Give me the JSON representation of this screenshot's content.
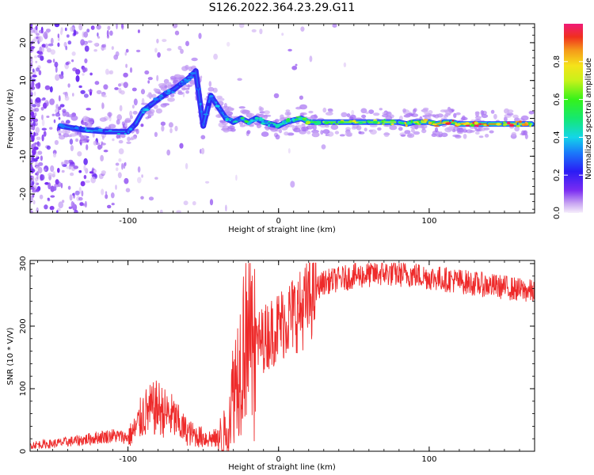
{
  "title": "S126.2022.364.23.29.G11",
  "colors": {
    "snr_line": "#ee2a2a",
    "axes": "#000000",
    "background": "#ffffff"
  },
  "chart_data": [
    {
      "type": "heatmap",
      "title": "",
      "xlabel": "Height of straight line (km)",
      "ylabel": "Frequency (Hz)",
      "xlim": [
        -165,
        170
      ],
      "ylim": [
        -25,
        25
      ],
      "x_ticks": [
        -100,
        0,
        100
      ],
      "x_tick_labels": [
        "-100",
        "0",
        "100"
      ],
      "y_ticks": [
        -20,
        -10,
        0,
        10,
        20
      ],
      "y_tick_labels": [
        "-20",
        "-10",
        "0",
        "10",
        "20"
      ],
      "colorbar": {
        "label": "Normalized spectral amplitude",
        "range": [
          0,
          1
        ],
        "ticks": [
          0.0,
          0.2,
          0.4,
          0.6,
          0.8
        ],
        "tick_labels": [
          "0.0",
          "0.2",
          "0.4",
          "0.6",
          "0.8"
        ],
        "colormap": "rainbow (violet to red)"
      },
      "ridge": {
        "x": [
          -145,
          -130,
          -115,
          -100,
          -95,
          -90,
          -85,
          -80,
          -75,
          -70,
          -65,
          -60,
          -55,
          -50,
          -45,
          -40,
          -35,
          -30,
          -25,
          -20,
          -15,
          -10,
          -5,
          0,
          5,
          10,
          15,
          20,
          30,
          40,
          50,
          60,
          70,
          80,
          85,
          90,
          95,
          100,
          105,
          110,
          115,
          120,
          130,
          140,
          150,
          160,
          168
        ],
        "y": [
          -2,
          -3,
          -3.5,
          -3.5,
          -1.5,
          2,
          3.5,
          5,
          6.5,
          7.5,
          9,
          10.5,
          12.5,
          -2,
          6,
          3,
          0,
          -1,
          0,
          -1,
          0,
          -1,
          -1.5,
          -2,
          -1,
          -0.5,
          0,
          -1,
          -1,
          -1,
          -1,
          -1,
          -1,
          -1,
          -1.5,
          -1,
          -1,
          -1,
          -1.5,
          -1,
          -1,
          -1.5,
          -1.5,
          -1.5,
          -1.5,
          -1.5,
          -1.5
        ],
        "amplitude": [
          0.3,
          0.35,
          0.35,
          0.3,
          0.3,
          0.35,
          0.3,
          0.3,
          0.3,
          0.3,
          0.3,
          0.3,
          0.3,
          0.3,
          0.35,
          0.3,
          0.4,
          0.4,
          0.5,
          0.45,
          0.45,
          0.4,
          0.4,
          0.4,
          0.5,
          0.55,
          0.6,
          0.6,
          0.62,
          0.65,
          0.65,
          0.65,
          0.65,
          0.7,
          0.55,
          0.7,
          0.75,
          0.8,
          0.85,
          0.85,
          0.8,
          0.85,
          0.9,
          0.9,
          0.85,
          0.75,
          0.6
        ]
      }
    },
    {
      "type": "line",
      "title": "",
      "xlabel": "Height of straight line (km)",
      "ylabel": "SNR (10 * V/V)",
      "xlim": [
        -165,
        170
      ],
      "ylim": [
        0,
        305
      ],
      "x_ticks": [
        -100,
        0,
        100
      ],
      "x_tick_labels": [
        "-100",
        "0",
        "100"
      ],
      "y_ticks": [
        0,
        100,
        200,
        300
      ],
      "y_tick_labels": [
        "0",
        "100",
        "200",
        "300"
      ],
      "series": [
        {
          "x": [
            -165,
            -150,
            -140,
            -130,
            -120,
            -110,
            -100,
            -95,
            -90,
            -85,
            -80,
            -75,
            -70,
            -65,
            -60,
            -55,
            -50,
            -45,
            -40,
            -35,
            -30,
            -25,
            -22,
            -20,
            -18,
            -15,
            -10,
            -5,
            0,
            5,
            10,
            15,
            20,
            25,
            30,
            40,
            50,
            60,
            70,
            80,
            90,
            100,
            110,
            120,
            130,
            140,
            150,
            160,
            170
          ],
          "y": [
            10,
            12,
            15,
            18,
            22,
            25,
            22,
            35,
            60,
            65,
            70,
            60,
            55,
            40,
            30,
            25,
            22,
            20,
            20,
            30,
            100,
            150,
            200,
            250,
            150,
            170,
            180,
            190,
            200,
            210,
            220,
            225,
            240,
            260,
            270,
            275,
            280,
            282,
            285,
            283,
            282,
            278,
            275,
            272,
            268,
            265,
            262,
            258,
            255
          ]
        }
      ]
    }
  ]
}
